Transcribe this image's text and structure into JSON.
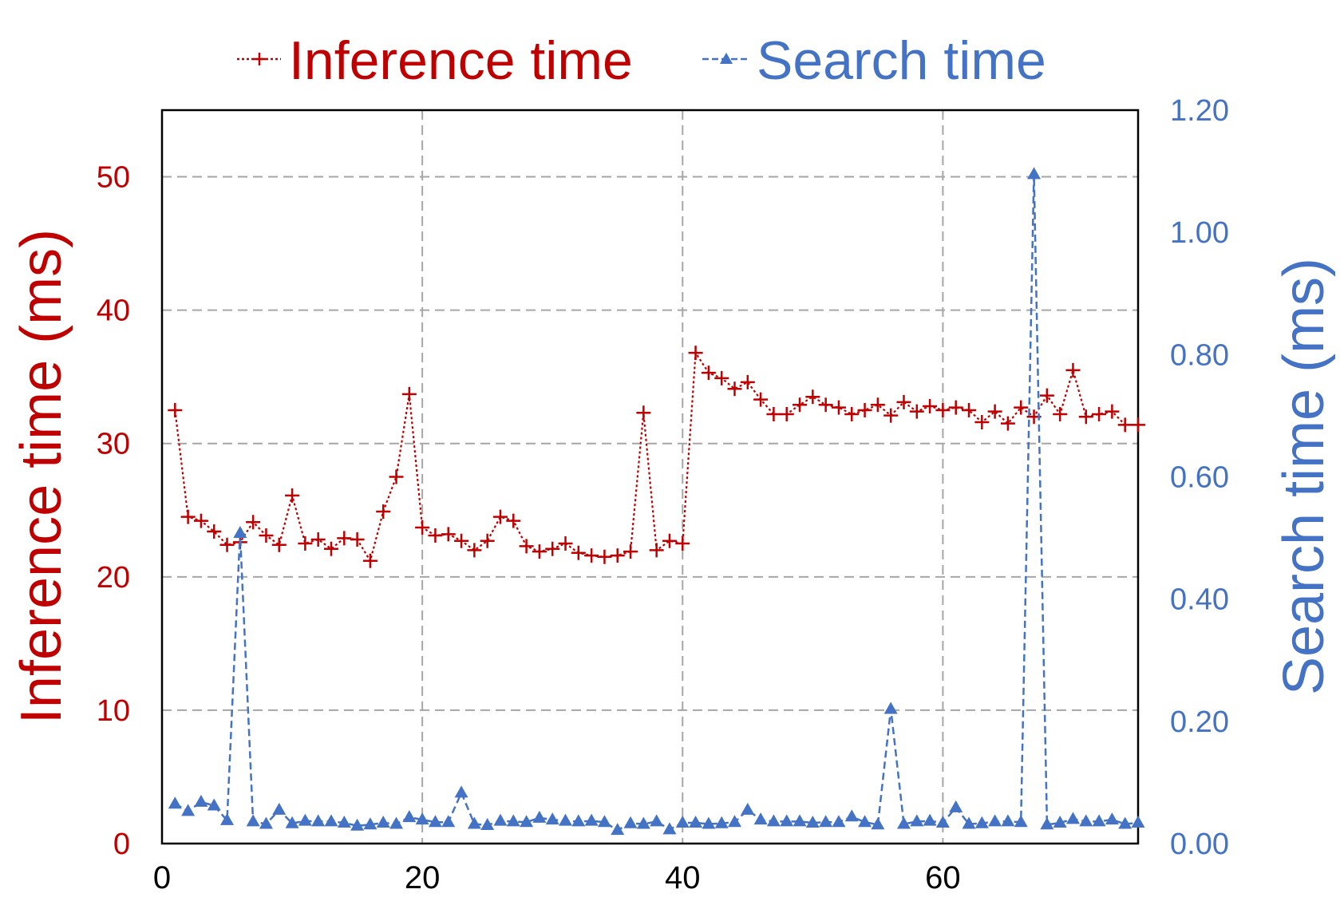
{
  "chart_data": {
    "type": "line",
    "dual_axis": true,
    "grid": true,
    "legend_position": "top",
    "colors": {
      "inference": "#c00000",
      "search": "#4472c4"
    },
    "x": [
      1,
      2,
      3,
      4,
      5,
      6,
      7,
      8,
      9,
      10,
      11,
      12,
      13,
      14,
      15,
      16,
      17,
      18,
      19,
      20,
      21,
      22,
      23,
      24,
      25,
      26,
      27,
      28,
      29,
      30,
      31,
      32,
      33,
      34,
      35,
      36,
      37,
      38,
      39,
      40,
      41,
      42,
      43,
      44,
      45,
      46,
      47,
      48,
      49,
      50,
      51,
      52,
      53,
      54,
      55,
      56,
      57,
      58,
      59,
      60,
      61,
      62,
      63,
      64,
      65,
      66,
      67,
      68,
      69,
      70,
      71,
      72,
      73,
      74,
      75
    ],
    "xlim": [
      0,
      75
    ],
    "xticks": [
      "0",
      "20",
      "40",
      "60"
    ],
    "xtick_values": [
      0,
      20,
      40,
      60
    ],
    "y_left": {
      "label": "Inference time (ms)",
      "ylim": [
        0,
        55
      ],
      "ticks": [
        "0",
        "10",
        "20",
        "30",
        "40",
        "50"
      ],
      "tick_values": [
        0,
        10,
        20,
        30,
        40,
        50
      ]
    },
    "y_right": {
      "label": "Search time (ms)",
      "ylim": [
        0,
        1.2
      ],
      "ticks": [
        "0.00",
        "0.20",
        "0.40",
        "0.60",
        "0.80",
        "1.00",
        "1.20"
      ],
      "tick_values": [
        0,
        0.2,
        0.4,
        0.6,
        0.8,
        1.0,
        1.2
      ]
    },
    "series": [
      {
        "name": "Inference time",
        "axis": "left",
        "marker": "plus",
        "line": "dotted",
        "values": [
          32.5,
          24.5,
          24.2,
          23.4,
          22.4,
          22.6,
          24.1,
          23.1,
          22.4,
          26.1,
          22.5,
          22.8,
          22.1,
          22.9,
          22.8,
          21.2,
          24.9,
          27.5,
          33.7,
          23.7,
          23.1,
          23.2,
          22.7,
          22.0,
          22.7,
          24.5,
          24.2,
          22.3,
          21.9,
          22.1,
          22.5,
          21.8,
          21.6,
          21.5,
          21.6,
          21.9,
          32.3,
          22.0,
          22.7,
          22.5,
          36.8,
          35.3,
          34.9,
          34.1,
          34.6,
          33.3,
          32.2,
          32.2,
          32.9,
          33.5,
          32.9,
          32.7,
          32.2,
          32.5,
          32.9,
          32.1,
          33.1,
          32.4,
          32.8,
          32.5,
          32.7,
          32.5,
          31.6,
          32.4,
          31.5,
          32.7,
          32.0,
          33.6,
          32.2,
          35.5,
          32.0,
          32.2,
          32.4,
          31.4,
          31.4
        ]
      },
      {
        "name": "Search time",
        "axis": "right",
        "marker": "triangle",
        "line": "dashed",
        "values": [
          0.065,
          0.053,
          0.068,
          0.062,
          0.038,
          0.508,
          0.036,
          0.032,
          0.055,
          0.033,
          0.037,
          0.036,
          0.036,
          0.034,
          0.029,
          0.031,
          0.034,
          0.032,
          0.043,
          0.039,
          0.035,
          0.035,
          0.083,
          0.032,
          0.03,
          0.037,
          0.036,
          0.035,
          0.042,
          0.039,
          0.037,
          0.036,
          0.037,
          0.035,
          0.022,
          0.033,
          0.032,
          0.036,
          0.023,
          0.034,
          0.034,
          0.032,
          0.033,
          0.035,
          0.055,
          0.039,
          0.036,
          0.036,
          0.036,
          0.034,
          0.035,
          0.035,
          0.044,
          0.035,
          0.031,
          0.22,
          0.032,
          0.036,
          0.037,
          0.034,
          0.059,
          0.032,
          0.033,
          0.036,
          0.036,
          0.035,
          1.095,
          0.031,
          0.034,
          0.04,
          0.036,
          0.036,
          0.039,
          0.032,
          0.034
        ]
      }
    ]
  }
}
